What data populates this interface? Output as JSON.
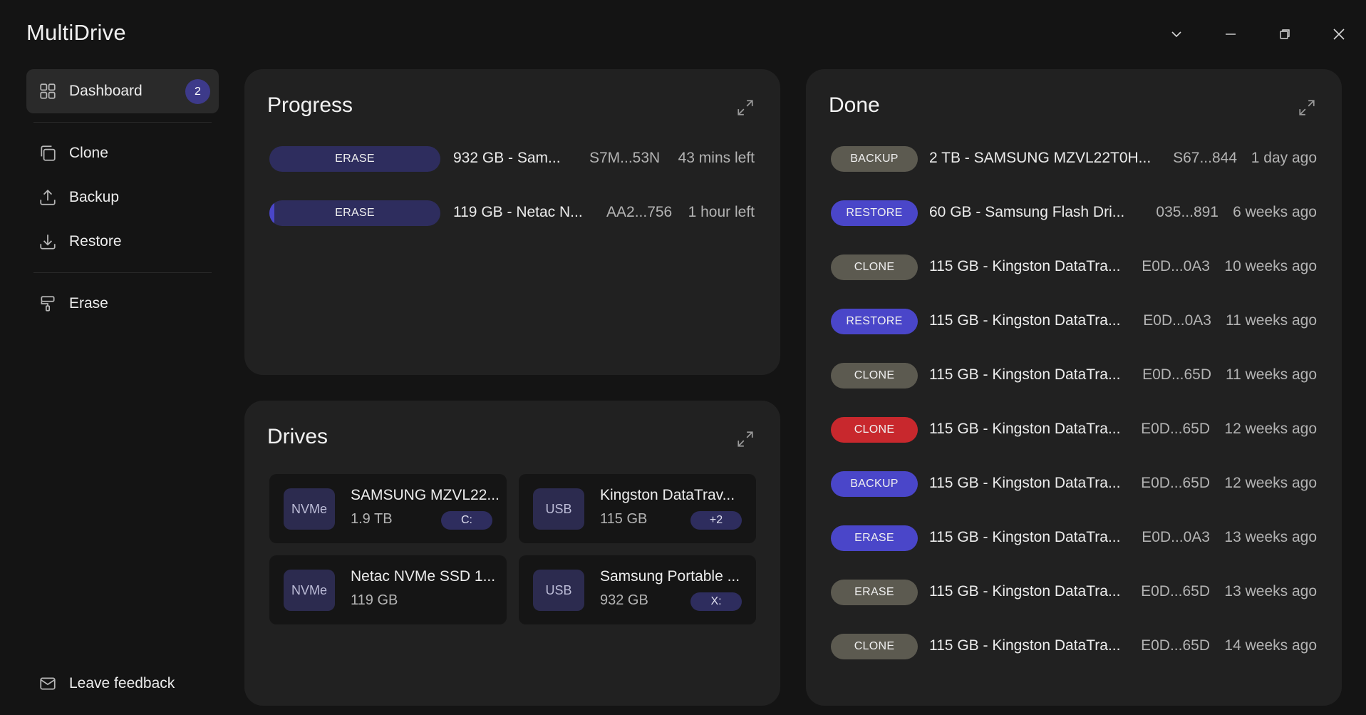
{
  "app": {
    "title": "MultiDrive"
  },
  "colors": {
    "accent": "#4a46c9",
    "pill_gray": "#5c5a50",
    "pill_red": "#c8282d",
    "pill_dark_accent": "#2e2d5e"
  },
  "window_controls": [
    {
      "icon": "chevron-down-icon"
    },
    {
      "icon": "minimize-icon"
    },
    {
      "icon": "restore-icon"
    },
    {
      "icon": "close-icon"
    }
  ],
  "sidebar": {
    "items": [
      {
        "label": "Dashboard",
        "icon": "dashboard-grid-icon",
        "badge": "2",
        "active": true
      },
      {
        "label": "Clone",
        "icon": "clone-icon"
      },
      {
        "label": "Backup",
        "icon": "upload-icon"
      },
      {
        "label": "Restore",
        "icon": "download-icon"
      },
      {
        "label": "Erase",
        "icon": "paint-roller-icon"
      }
    ],
    "feedback": {
      "label": "Leave feedback",
      "icon": "mail-icon"
    }
  },
  "progress": {
    "title": "Progress",
    "rows": [
      {
        "action": "ERASE",
        "progress": 0.0,
        "name": "932 GB - Sam...",
        "serial": "S7M...53N",
        "eta": "43 mins left"
      },
      {
        "action": "ERASE",
        "progress": 0.02,
        "name": "119 GB - Netac N...",
        "serial": "AA2...756",
        "eta": "1 hour left"
      }
    ]
  },
  "drives": {
    "title": "Drives",
    "cards": [
      {
        "type": "NVMe",
        "name": "SAMSUNG MZVL22...",
        "size": "1.9 TB",
        "tag": "C:"
      },
      {
        "type": "USB",
        "name": "Kingston DataTrav...",
        "size": "115 GB",
        "tag": "+2"
      },
      {
        "type": "NVMe",
        "name": "Netac NVMe SSD 1...",
        "size": "119 GB",
        "tag": ""
      },
      {
        "type": "USB",
        "name": "Samsung Portable ...",
        "size": "932 GB",
        "tag": "X:"
      }
    ]
  },
  "done": {
    "title": "Done",
    "rows": [
      {
        "action": "BACKUP",
        "color": "gray",
        "name": "2 TB - SAMSUNG MZVL22T0H...",
        "serial": "S67...844",
        "when": "1 day ago"
      },
      {
        "action": "RESTORE",
        "color": "accent",
        "name": "60 GB - Samsung Flash Dri...",
        "serial": "035...891",
        "when": "6 weeks ago"
      },
      {
        "action": "CLONE",
        "color": "gray",
        "name": "115 GB - Kingston DataTra...",
        "serial": "E0D...0A3",
        "when": "10 weeks ago"
      },
      {
        "action": "RESTORE",
        "color": "accent",
        "name": "115 GB - Kingston DataTra...",
        "serial": "E0D...0A3",
        "when": "11 weeks ago"
      },
      {
        "action": "CLONE",
        "color": "gray",
        "name": "115 GB - Kingston DataTra...",
        "serial": "E0D...65D",
        "when": "11 weeks ago"
      },
      {
        "action": "CLONE",
        "color": "red",
        "name": "115 GB - Kingston DataTra...",
        "serial": "E0D...65D",
        "when": "12 weeks ago"
      },
      {
        "action": "BACKUP",
        "color": "accent",
        "name": "115 GB - Kingston DataTra...",
        "serial": "E0D...65D",
        "when": "12 weeks ago"
      },
      {
        "action": "ERASE",
        "color": "accent",
        "name": "115 GB - Kingston DataTra...",
        "serial": "E0D...0A3",
        "when": "13 weeks ago"
      },
      {
        "action": "ERASE",
        "color": "gray",
        "name": "115 GB - Kingston DataTra...",
        "serial": "E0D...65D",
        "when": "13 weeks ago"
      },
      {
        "action": "CLONE",
        "color": "gray",
        "name": "115 GB - Kingston DataTra...",
        "serial": "E0D...65D",
        "when": "14 weeks ago"
      }
    ]
  }
}
